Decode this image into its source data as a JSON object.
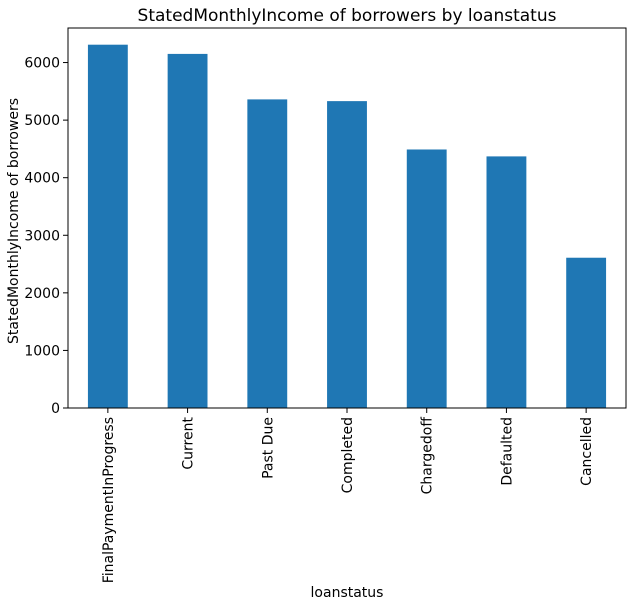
{
  "chart_data": {
    "type": "bar",
    "title": "StatedMonthlyIncome of borrowers by loanstatus",
    "xlabel": "loanstatus",
    "ylabel": "StatedMonthlyIncome of borrowers",
    "categories": [
      "FinalPaymentInProgress",
      "Current",
      "Past Due",
      "Completed",
      "Chargedoff",
      "Defaulted",
      "Cancelled"
    ],
    "values": [
      6310,
      6150,
      5360,
      5330,
      4490,
      4370,
      2610
    ],
    "ylim": [
      0,
      6600
    ],
    "yticks": [
      0,
      1000,
      2000,
      3000,
      4000,
      5000,
      6000
    ],
    "bar_color": "#1f77b4",
    "grid": false,
    "legend": "none"
  }
}
